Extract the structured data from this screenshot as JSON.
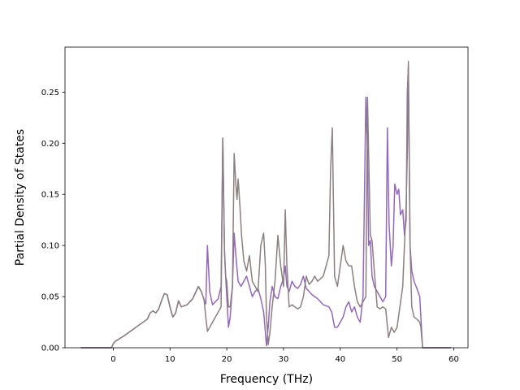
{
  "chart_data": {
    "type": "line",
    "title": "",
    "xlabel": "Frequency (THz)",
    "ylabel": "Partial Density of States",
    "xlim": [
      -8.5,
      62.5
    ],
    "ylim": [
      0.0,
      0.294
    ],
    "xticks": [
      0,
      10,
      20,
      30,
      40,
      50,
      60
    ],
    "yticks": [
      0.0,
      0.05,
      0.1,
      0.15,
      0.2,
      0.25
    ],
    "ytick_labels": [
      "0.00",
      "0.05",
      "0.10",
      "0.15",
      "0.20",
      "0.25"
    ],
    "grid": false,
    "legend": "none",
    "series": [
      {
        "color": "#9467bd",
        "x": [
          -5.7,
          -0.3,
          0.0,
          0.3,
          2.0,
          4.0,
          6.0,
          6.5,
          7.0,
          7.5,
          8.0,
          8.5,
          9.0,
          9.5,
          10.0,
          10.5,
          11.0,
          11.5,
          12.0,
          13.0,
          14.0,
          14.5,
          15.0,
          15.5,
          16.0,
          16.3,
          16.6,
          17.0,
          17.5,
          18.0,
          18.5,
          19.0,
          19.3,
          19.6,
          19.8,
          20.0,
          20.3,
          20.6,
          21.0,
          21.3,
          21.6,
          22.0,
          22.5,
          23.0,
          23.5,
          24.0,
          24.5,
          25.0,
          25.5,
          26.0,
          26.5,
          26.8,
          27.0,
          27.3,
          27.6,
          28.0,
          28.5,
          29.0,
          29.5,
          30.0,
          30.3,
          30.6,
          31.0,
          31.5,
          32.0,
          32.5,
          33.0,
          33.5,
          34.0,
          34.5,
          35.0,
          35.5,
          36.0,
          37.0,
          38.0,
          38.5,
          39.0,
          39.5,
          40.0,
          40.5,
          41.0,
          41.5,
          42.0,
          42.5,
          43.0,
          43.5,
          44.0,
          44.5,
          44.8,
          45.0,
          45.3,
          45.6,
          46.0,
          46.5,
          47.0,
          47.5,
          48.0,
          48.3,
          48.6,
          49.0,
          49.3,
          49.6,
          50.0,
          50.3,
          50.6,
          51.0,
          51.3,
          51.6,
          51.8,
          52.0,
          52.3,
          52.6,
          53.0,
          53.5,
          54.0,
          54.2,
          54.5,
          59.5
        ],
        "y": [
          0.0,
          0.0,
          0.004,
          0.006,
          0.012,
          0.02,
          0.028,
          0.034,
          0.036,
          0.034,
          0.038,
          0.046,
          0.053,
          0.052,
          0.04,
          0.03,
          0.034,
          0.046,
          0.04,
          0.042,
          0.048,
          0.054,
          0.06,
          0.055,
          0.047,
          0.043,
          0.1,
          0.055,
          0.042,
          0.045,
          0.048,
          0.06,
          0.205,
          0.095,
          0.07,
          0.05,
          0.02,
          0.03,
          0.06,
          0.112,
          0.09,
          0.065,
          0.06,
          0.065,
          0.07,
          0.06,
          0.05,
          0.055,
          0.058,
          0.048,
          0.035,
          0.015,
          0.002,
          0.02,
          0.045,
          0.06,
          0.05,
          0.048,
          0.06,
          0.068,
          0.08,
          0.06,
          0.055,
          0.065,
          0.06,
          0.058,
          0.062,
          0.07,
          0.058,
          0.055,
          0.052,
          0.05,
          0.048,
          0.042,
          0.04,
          0.035,
          0.02,
          0.02,
          0.025,
          0.03,
          0.04,
          0.045,
          0.035,
          0.04,
          0.03,
          0.025,
          0.05,
          0.245,
          0.19,
          0.1,
          0.105,
          0.07,
          0.06,
          0.055,
          0.05,
          0.045,
          0.05,
          0.215,
          0.12,
          0.08,
          0.1,
          0.16,
          0.15,
          0.155,
          0.13,
          0.135,
          0.11,
          0.125,
          0.25,
          0.275,
          0.1,
          0.075,
          0.065,
          0.058,
          0.05,
          0.03,
          0.0,
          0.0
        ]
      },
      {
        "color": "#8c7f7f",
        "x": [
          -5.7,
          -0.3,
          0.0,
          0.3,
          2.0,
          4.0,
          6.0,
          6.5,
          7.0,
          7.5,
          8.0,
          8.5,
          9.0,
          9.5,
          10.0,
          10.5,
          11.0,
          11.5,
          12.0,
          13.0,
          14.0,
          14.5,
          15.0,
          15.5,
          16.0,
          16.3,
          16.6,
          17.0,
          17.5,
          18.0,
          18.5,
          19.0,
          19.3,
          19.6,
          19.8,
          20.0,
          20.3,
          20.6,
          21.0,
          21.3,
          21.6,
          21.8,
          22.0,
          22.3,
          22.6,
          23.0,
          23.5,
          24.0,
          24.5,
          25.0,
          25.5,
          26.0,
          26.5,
          26.8,
          27.0,
          27.3,
          27.6,
          28.0,
          28.5,
          29.0,
          29.5,
          30.0,
          30.3,
          30.6,
          31.0,
          31.5,
          32.0,
          32.5,
          33.0,
          33.5,
          34.0,
          34.5,
          35.0,
          35.5,
          36.0,
          37.0,
          38.0,
          38.3,
          38.6,
          39.0,
          39.5,
          40.0,
          40.5,
          41.0,
          41.5,
          42.0,
          42.5,
          43.0,
          43.5,
          44.0,
          44.5,
          44.8,
          45.0,
          45.3,
          45.6,
          46.0,
          46.5,
          47.0,
          47.5,
          48.0,
          48.5,
          49.0,
          49.5,
          50.0,
          50.5,
          51.0,
          51.3,
          51.6,
          51.8,
          52.0,
          52.3,
          52.6,
          53.0,
          53.5,
          54.0,
          54.2,
          54.5,
          59.5
        ],
        "y": [
          0.0,
          0.0,
          0.004,
          0.006,
          0.012,
          0.02,
          0.028,
          0.034,
          0.036,
          0.034,
          0.038,
          0.046,
          0.053,
          0.052,
          0.04,
          0.03,
          0.034,
          0.046,
          0.04,
          0.042,
          0.048,
          0.054,
          0.06,
          0.055,
          0.047,
          0.03,
          0.016,
          0.02,
          0.025,
          0.03,
          0.035,
          0.04,
          0.205,
          0.095,
          0.07,
          0.065,
          0.04,
          0.04,
          0.06,
          0.19,
          0.16,
          0.145,
          0.165,
          0.14,
          0.11,
          0.085,
          0.075,
          0.09,
          0.065,
          0.06,
          0.055,
          0.1,
          0.112,
          0.08,
          0.03,
          0.003,
          0.015,
          0.04,
          0.065,
          0.11,
          0.08,
          0.06,
          0.135,
          0.08,
          0.04,
          0.042,
          0.04,
          0.038,
          0.04,
          0.05,
          0.07,
          0.062,
          0.065,
          0.07,
          0.065,
          0.07,
          0.09,
          0.175,
          0.215,
          0.07,
          0.06,
          0.08,
          0.1,
          0.085,
          0.08,
          0.08,
          0.06,
          0.045,
          0.04,
          0.045,
          0.05,
          0.245,
          0.19,
          0.11,
          0.105,
          0.075,
          0.04,
          0.038,
          0.04,
          0.038,
          0.01,
          0.02,
          0.015,
          0.02,
          0.04,
          0.06,
          0.1,
          0.14,
          0.19,
          0.28,
          0.1,
          0.04,
          0.03,
          0.028,
          0.025,
          0.02,
          0.0,
          0.0
        ]
      }
    ]
  }
}
